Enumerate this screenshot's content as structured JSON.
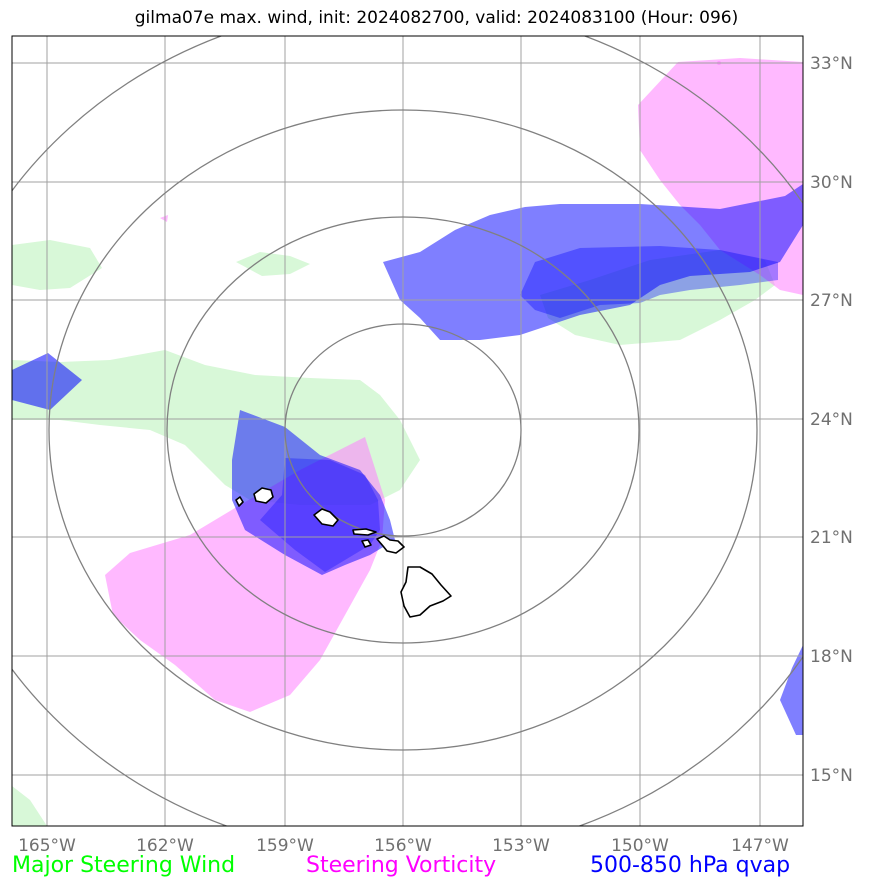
{
  "title": "gilma07e max. wind, init: 2024082700, valid: 2024083100 (Hour: 096)",
  "map": {
    "lon_ticks": [
      "165°W",
      "162°W",
      "159°W",
      "156°W",
      "153°W",
      "150°W",
      "147°W"
    ],
    "lat_ticks": [
      "33°N",
      "30°N",
      "27°N",
      "24°N",
      "21°N",
      "18°N",
      "15°N"
    ],
    "range_rings_count": 4,
    "colors": {
      "steering_wind": "#d8f8d8",
      "steering_vorticity": "#ff80ff",
      "qvap": "#0000ff",
      "grid": "#a0a0a0",
      "rings": "#808080",
      "coast": "#000000"
    }
  },
  "legend": {
    "wind": {
      "label": "Major Steering Wind",
      "color": "#00ff00"
    },
    "vorticity": {
      "label": "Steering Vorticity",
      "color": "#ff00ff"
    },
    "qvap": {
      "label": "500-850 hPa qvap",
      "color": "#0000ff"
    }
  }
}
